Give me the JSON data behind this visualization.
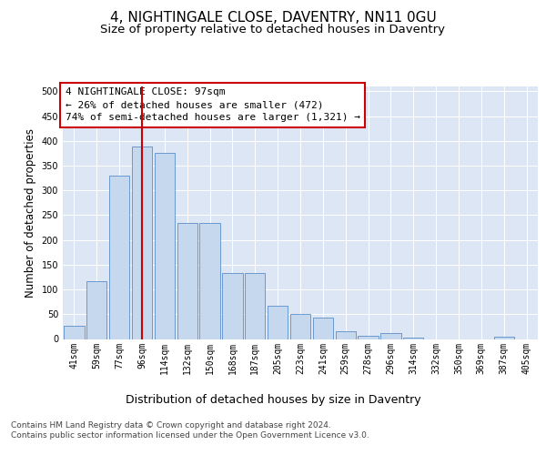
{
  "title": "4, NIGHTINGALE CLOSE, DAVENTRY, NN11 0GU",
  "subtitle": "Size of property relative to detached houses in Daventry",
  "xlabel": "Distribution of detached houses by size in Daventry",
  "ylabel": "Number of detached properties",
  "categories": [
    "41sqm",
    "59sqm",
    "77sqm",
    "96sqm",
    "114sqm",
    "132sqm",
    "150sqm",
    "168sqm",
    "187sqm",
    "205sqm",
    "223sqm",
    "241sqm",
    "259sqm",
    "278sqm",
    "296sqm",
    "314sqm",
    "332sqm",
    "350sqm",
    "369sqm",
    "387sqm",
    "405sqm"
  ],
  "values": [
    27,
    116,
    330,
    388,
    375,
    235,
    235,
    133,
    133,
    68,
    50,
    44,
    15,
    7,
    12,
    2,
    0,
    0,
    0,
    5,
    0
  ],
  "bar_color": "#c5d8ed",
  "bar_edge_color": "#5b8fc9",
  "fig_bg_color": "#ffffff",
  "plot_bg_color": "#dce6f4",
  "grid_color": "#ffffff",
  "vline_color": "#cc0000",
  "vline_x": 3.0,
  "annotation_text": "4 NIGHTINGALE CLOSE: 97sqm\n← 26% of detached houses are smaller (472)\n74% of semi-detached houses are larger (1,321) →",
  "annotation_box_facecolor": "#ffffff",
  "annotation_box_edgecolor": "#cc0000",
  "footer_text": "Contains HM Land Registry data © Crown copyright and database right 2024.\nContains public sector information licensed under the Open Government Licence v3.0.",
  "ylim": [
    0,
    510
  ],
  "yticks": [
    0,
    50,
    100,
    150,
    200,
    250,
    300,
    350,
    400,
    450,
    500
  ],
  "title_fontsize": 11,
  "subtitle_fontsize": 9.5,
  "ylabel_fontsize": 8.5,
  "xlabel_fontsize": 9,
  "tick_fontsize": 7,
  "annotation_fontsize": 8,
  "footer_fontsize": 6.5
}
